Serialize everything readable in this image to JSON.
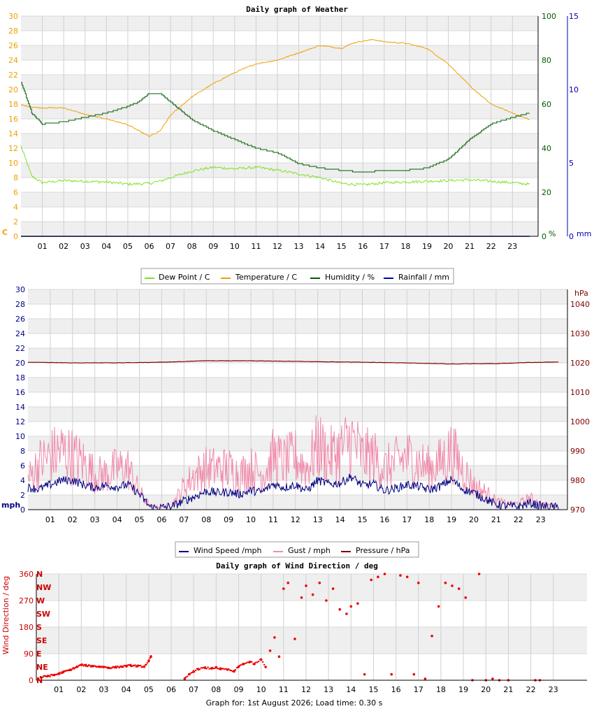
{
  "footer": "Graph for: 1st August 2026; Load time: 0.30 s",
  "x_ticks": [
    "01",
    "02",
    "03",
    "04",
    "05",
    "06",
    "07",
    "08",
    "09",
    "10",
    "11",
    "12",
    "13",
    "14",
    "15",
    "16",
    "17",
    "18",
    "19",
    "20",
    "21",
    "22",
    "23"
  ],
  "colors": {
    "dewpoint": "#80e020",
    "temperature": "#f0a000",
    "humidity": "#005a00",
    "rainfall": "#0000b0",
    "wind": "#000080",
    "gust": "#f08aaa",
    "pressure": "#800000",
    "direction": "#ee0000"
  },
  "chart_data": [
    {
      "type": "line",
      "title": "Daily graph of Weather",
      "left_axis": {
        "unit": "C",
        "ticks": [
          "0",
          "2",
          "4",
          "6",
          "8",
          "10",
          "12",
          "14",
          "16",
          "18",
          "20",
          "22",
          "24",
          "26",
          "28",
          "30"
        ],
        "ylim": [
          0,
          30
        ]
      },
      "right_axis_1": {
        "unit": "%",
        "ticks": [
          "0",
          "20",
          "40",
          "60",
          "80",
          "100"
        ],
        "ylim": [
          0,
          100
        ]
      },
      "right_axis_2": {
        "unit": "mm",
        "ticks": [
          "0",
          "5",
          "10",
          "15"
        ],
        "ylim": [
          0,
          15
        ]
      },
      "legend": [
        "Dew Point / C",
        "Temperature / C",
        "Humidity / %",
        "Rainfall / mm"
      ],
      "series": [
        {
          "name": "Dew Point / C",
          "axis": "C",
          "x": [
            0,
            0.5,
            1,
            2,
            3,
            4,
            5,
            6,
            6.5,
            7,
            8,
            9,
            10,
            11,
            12,
            13,
            14,
            15,
            16,
            17,
            18,
            19,
            20,
            21,
            22,
            23,
            23.8
          ],
          "values": [
            12.3,
            8.2,
            7.3,
            7.6,
            7.5,
            7.4,
            7.1,
            7.2,
            7.5,
            8.0,
            8.9,
            9.4,
            9.2,
            9.4,
            9.0,
            8.5,
            8.0,
            7.2,
            7.0,
            7.3,
            7.4,
            7.5,
            7.6,
            7.7,
            7.5,
            7.3,
            7.1
          ]
        },
        {
          "name": "Temperature / C",
          "axis": "C",
          "x": [
            0,
            0.5,
            1,
            2,
            3,
            4,
            5,
            6,
            6.5,
            7,
            8,
            9,
            10,
            11,
            12,
            13,
            14,
            15,
            15.5,
            16,
            16.5,
            17,
            18,
            19,
            20,
            21,
            22,
            23,
            23.8
          ],
          "values": [
            17.9,
            17.6,
            17.5,
            17.5,
            16.6,
            16.0,
            15.2,
            13.6,
            14.3,
            16.5,
            19.0,
            20.8,
            22.3,
            23.5,
            24.0,
            25.0,
            26.0,
            25.6,
            26.3,
            26.6,
            26.8,
            26.5,
            26.3,
            25.6,
            23.5,
            20.5,
            18.0,
            16.8,
            15.9
          ]
        },
        {
          "name": "Humidity / %",
          "axis": "%",
          "x": [
            0,
            0.5,
            1,
            2,
            3,
            4,
            5,
            5.5,
            6,
            6.5,
            7,
            8,
            9,
            10,
            11,
            12,
            13,
            14,
            15,
            16,
            17,
            18,
            19,
            20,
            21,
            22,
            23,
            23.8
          ],
          "values": [
            70,
            56,
            51,
            52,
            54,
            56,
            59,
            61,
            65,
            65,
            61,
            53,
            48,
            44,
            40,
            38,
            33,
            31,
            30,
            29,
            30,
            30,
            31,
            35,
            44,
            51,
            54,
            56
          ]
        },
        {
          "name": "Rainfall / mm",
          "axis": "mm",
          "x": [
            0,
            23.8
          ],
          "values": [
            0,
            0
          ]
        }
      ]
    },
    {
      "type": "line",
      "title": "",
      "left_axis": {
        "unit": "mph",
        "ticks": [
          "0",
          "2",
          "4",
          "6",
          "8",
          "10",
          "12",
          "14",
          "16",
          "18",
          "20",
          "22",
          "24",
          "26",
          "28",
          "30"
        ],
        "ylim": [
          0,
          30
        ]
      },
      "right_axis": {
        "unit": "hPa",
        "ticks": [
          "970",
          "980",
          "990",
          "1000",
          "1010",
          "1020",
          "1030",
          "1040"
        ],
        "ylim": [
          970,
          1045
        ]
      },
      "legend": [
        "Wind Speed /mph",
        "Gust / mph",
        "Pressure / hPa"
      ],
      "series": [
        {
          "name": "Wind Speed /mph",
          "axis": "mph",
          "x": [
            0,
            0.5,
            1,
            1.5,
            2,
            2.5,
            3,
            3.5,
            4,
            4.5,
            5,
            5.5,
            6,
            6.5,
            7,
            7.5,
            8,
            8.5,
            9,
            9.5,
            10,
            10.5,
            11,
            11.5,
            12,
            12.5,
            13,
            13.5,
            14,
            14.5,
            15,
            15.5,
            16,
            16.5,
            17,
            17.5,
            18,
            18.5,
            19,
            19.5,
            20,
            20.5,
            21,
            21.5,
            22,
            22.5,
            23,
            23.8
          ],
          "values": [
            3,
            2.8,
            3.4,
            4,
            4,
            3.4,
            3,
            3.3,
            3.1,
            3.4,
            2.1,
            0.3,
            0.3,
            0.5,
            1.2,
            1.8,
            2.5,
            2.3,
            2.4,
            2.1,
            2.6,
            2.4,
            3.5,
            3,
            3.4,
            2.6,
            4,
            3.5,
            3.6,
            4.5,
            3.3,
            3.5,
            2.6,
            2.9,
            3.4,
            3.2,
            2.7,
            3.2,
            4.1,
            2.8,
            2.3,
            1.5,
            0.7,
            0.5,
            0.4,
            0.9,
            0.5,
            0.3
          ]
        },
        {
          "name": "Gust / mph",
          "axis": "mph",
          "x": [
            0,
            0.5,
            1,
            1.5,
            2,
            2.5,
            3,
            3.5,
            4,
            4.5,
            5,
            5.5,
            6,
            6.5,
            7,
            7.5,
            8,
            8.5,
            9,
            9.5,
            10,
            10.5,
            11,
            11.5,
            12,
            12.5,
            13,
            13.5,
            14,
            14.5,
            15,
            15.5,
            16,
            16.5,
            17,
            17.5,
            18,
            18.5,
            19,
            19.5,
            20,
            20.5,
            21,
            21.5,
            22,
            22.5,
            23,
            23.8
          ],
          "values": [
            5,
            8,
            9,
            10,
            9,
            8,
            6,
            6,
            7,
            7,
            3,
            0.5,
            0.4,
            1,
            4,
            6,
            7,
            7,
            7,
            6,
            7,
            6,
            9,
            8,
            9,
            7,
            11,
            9,
            10,
            12,
            9,
            9,
            7,
            8,
            9,
            8,
            7,
            8,
            10,
            7,
            4,
            3,
            1.5,
            1,
            1,
            2,
            1,
            0.5
          ]
        },
        {
          "name": "Pressure / hPa",
          "axis": "hPa",
          "x": [
            0,
            2,
            4,
            6,
            8,
            10,
            12,
            14,
            16,
            18,
            19,
            20,
            21,
            22,
            23,
            23.8
          ],
          "values": [
            1020.2,
            1020.0,
            1020.0,
            1020.2,
            1020.7,
            1020.7,
            1020.5,
            1020.3,
            1020.1,
            1019.8,
            1019.6,
            1019.7,
            1019.7,
            1020.0,
            1020.2,
            1020.3
          ]
        }
      ]
    },
    {
      "type": "scatter",
      "title": "Daily graph of Wind Direction / deg",
      "ylabel": "Wind Direction / deg",
      "ylim": [
        0,
        360
      ],
      "y_ticks": [
        "0",
        "90",
        "180",
        "270",
        "360"
      ],
      "compass_labels": [
        "N",
        "NE",
        "E",
        "SE",
        "S",
        "SW",
        "W",
        "NW",
        "N"
      ],
      "series": [
        {
          "name": "",
          "x": [
            0.2,
            0.5,
            0.8,
            1.0,
            1.2,
            1.5,
            1.8,
            2.0,
            2.2,
            2.5,
            2.8,
            3.0,
            3.2,
            3.5,
            3.8,
            4.0,
            4.2,
            4.5,
            4.8,
            5.0,
            5.1,
            6.6,
            6.8,
            7.0,
            7.2,
            7.5,
            7.8,
            8.0,
            8.2,
            8.5,
            8.8,
            9.0,
            9.2,
            9.5,
            9.7,
            10.0,
            10.2,
            10.4,
            10.6,
            10.8,
            11.0,
            11.2,
            11.5,
            11.8,
            12.0,
            12.3,
            12.6,
            12.9,
            13.2,
            13.5,
            13.8,
            14.0,
            14.3,
            14.6,
            14.9,
            15.2,
            15.5,
            15.8,
            16.2,
            16.5,
            16.8,
            17.0,
            17.3,
            17.6,
            17.9,
            18.2,
            18.5,
            18.8,
            19.1,
            19.4,
            19.7,
            20.0,
            20.3,
            20.6,
            21.0,
            22.2,
            22.4
          ],
          "values": [
            10,
            14,
            18,
            22,
            28,
            35,
            45,
            52,
            50,
            48,
            46,
            45,
            42,
            44,
            46,
            48,
            50,
            48,
            46,
            65,
            80,
            5,
            20,
            30,
            38,
            42,
            40,
            44,
            38,
            36,
            30,
            46,
            55,
            62,
            55,
            70,
            45,
            100,
            145,
            80,
            310,
            330,
            140,
            280,
            320,
            290,
            330,
            270,
            310,
            240,
            225,
            250,
            260,
            20,
            340,
            350,
            360,
            20,
            355,
            350,
            20,
            330,
            5,
            150,
            250,
            330,
            320,
            310,
            280,
            0,
            360,
            0,
            5,
            0,
            0,
            0,
            0
          ]
        }
      ]
    }
  ]
}
